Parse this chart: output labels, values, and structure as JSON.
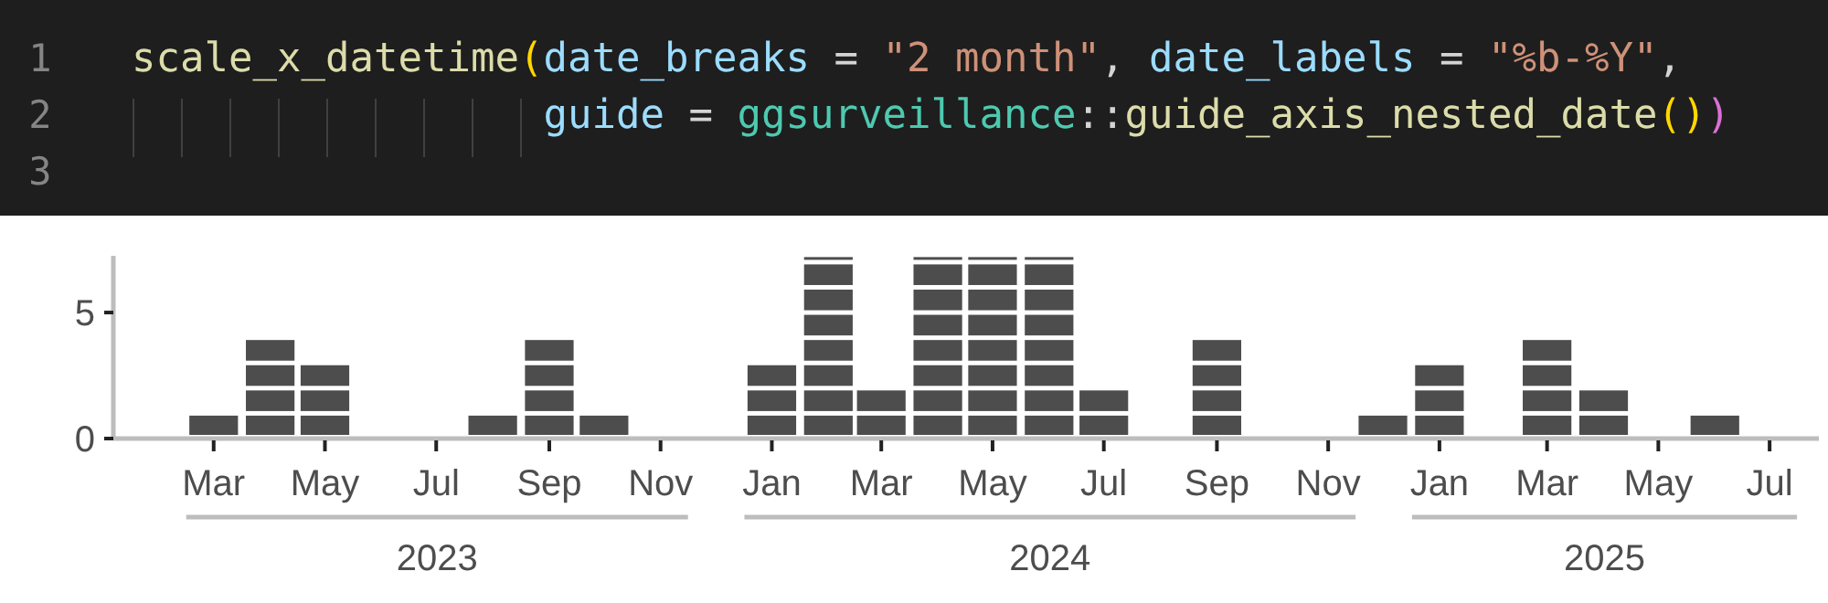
{
  "chart_data": {
    "type": "bar",
    "title": "scale_x_datetime(date_breaks = \"2 month\", date_labels = \"%b-%Y\",",
    "subtitle": "guide = ggsurveillance::guide_axis_nested_date())",
    "x": [
      "2023-03",
      "2023-04",
      "2023-05",
      "2023-06",
      "2023-07",
      "2023-08",
      "2023-09",
      "2023-10",
      "2023-11",
      "2023-12",
      "2024-01",
      "2024-02",
      "2024-03",
      "2024-04",
      "2024-05",
      "2024-06",
      "2024-07",
      "2024-08",
      "2024-09",
      "2024-10",
      "2024-11",
      "2024-12",
      "2025-01",
      "2025-02",
      "2025-03",
      "2025-04",
      "2025-05",
      "2025-06"
    ],
    "values": [
      1,
      4,
      3,
      0,
      0,
      1,
      4,
      1,
      0,
      0,
      3,
      7.2,
      2,
      7.2,
      7.2,
      7.2,
      2,
      0,
      4,
      0,
      0,
      1,
      3,
      0,
      4,
      2,
      0,
      1
    ],
    "color": "#4d4d4d",
    "xlim": [
      "2023-01-05",
      "2025-07-28"
    ],
    "ylim": [
      0,
      7.25
    ],
    "yticks": [
      0,
      5
    ],
    "xticks": [
      {
        "value": "2023-03",
        "label": "Mar"
      },
      {
        "value": "2023-05",
        "label": "May"
      },
      {
        "value": "2023-07",
        "label": "Jul"
      },
      {
        "value": "2023-09",
        "label": "Sep"
      },
      {
        "value": "2023-11",
        "label": "Nov"
      },
      {
        "value": "2024-01",
        "label": "Jan"
      },
      {
        "value": "2024-03",
        "label": "Mar"
      },
      {
        "value": "2024-05",
        "label": "May"
      },
      {
        "value": "2024-07",
        "label": "Jul"
      },
      {
        "value": "2024-09",
        "label": "Sep"
      },
      {
        "value": "2024-11",
        "label": "Nov"
      },
      {
        "value": "2025-01",
        "label": "Jan"
      },
      {
        "value": "2025-03",
        "label": "Mar"
      },
      {
        "value": "2025-05",
        "label": "May"
      },
      {
        "value": "2025-07",
        "label": "Jul"
      }
    ],
    "annotations": [
      "2023",
      "2024",
      "2025",
      "1",
      "2",
      "3"
    ]
  }
}
